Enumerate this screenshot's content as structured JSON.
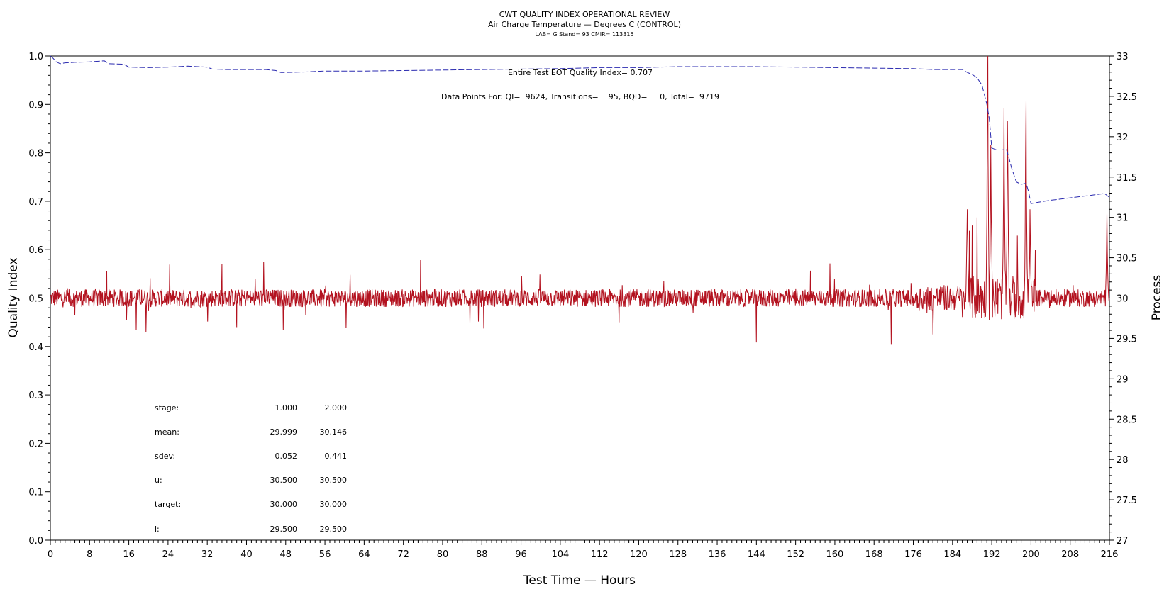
{
  "chart_data": {
    "type": "line",
    "title": "CWT QUALITY INDEX OPERATIONAL REVIEW",
    "subtitle": "Air Charge Temperature — Degrees C (CONTROL)",
    "subtitle2": "LAB= G Stand= 93 CMIR= 113315",
    "xlabel": "Test Time — Hours",
    "ylabel": "Quality Index",
    "y2label": "Process",
    "xlim": [
      0,
      216
    ],
    "ylim": [
      0,
      1.0
    ],
    "y2lim": [
      27,
      33
    ],
    "x_ticks": [
      0,
      8,
      16,
      24,
      32,
      40,
      48,
      56,
      64,
      72,
      80,
      88,
      96,
      104,
      112,
      120,
      128,
      136,
      144,
      152,
      160,
      168,
      176,
      184,
      192,
      200,
      208,
      216
    ],
    "y_ticks": [
      "0.0",
      "0.1",
      "0.2",
      "0.3",
      "0.4",
      "0.5",
      "0.6",
      "0.7",
      "0.8",
      "0.9",
      "1.0"
    ],
    "y2_ticks": [
      "27",
      "27.5",
      "28",
      "28.5",
      "29",
      "29.5",
      "30",
      "30.5",
      "31",
      "31.5",
      "32",
      "32.5",
      "33"
    ],
    "annotations": [
      "Entire Test EOT Quality Index=  0.707",
      "Data Points For: QI=  9624, Transitions=    95, BQD=     0, Total=  9719"
    ],
    "stats_table": {
      "rows": [
        {
          "label": "stage:",
          "values": [
            "1.000",
            "2.000"
          ]
        },
        {
          "label": "mean:",
          "values": [
            "29.999",
            "30.146"
          ]
        },
        {
          "label": "sdev:",
          "values": [
            "0.052",
            "0.441"
          ]
        },
        {
          "label": "u:",
          "values": [
            "30.500",
            "30.500"
          ]
        },
        {
          "label": "target:",
          "values": [
            "30.000",
            "30.000"
          ]
        },
        {
          "label": "l:",
          "values": [
            "29.500",
            "29.500"
          ]
        }
      ]
    },
    "series": [
      {
        "name": "",
        "axis": "left",
        "color": "#2b2bb0",
        "style": "dashed",
        "x": [
          0,
          0.6,
          1.2,
          2,
          3,
          5,
          8,
          11,
          12,
          15,
          16,
          20,
          24,
          28,
          32,
          33,
          36,
          40,
          44,
          46,
          47,
          48,
          52,
          56,
          60,
          64,
          72,
          80,
          88,
          96,
          104,
          112,
          120,
          128,
          136,
          144,
          152,
          160,
          168,
          176,
          180,
          184,
          186,
          187,
          188,
          189,
          190,
          191,
          191.5,
          192,
          193,
          194,
          195,
          195.5,
          196,
          197,
          198,
          199,
          199.5,
          200,
          201,
          204,
          208,
          212,
          215,
          216
        ],
        "y": [
          1.0,
          0.995,
          0.988,
          0.984,
          0.986,
          0.987,
          0.988,
          0.99,
          0.984,
          0.983,
          0.977,
          0.976,
          0.977,
          0.979,
          0.977,
          0.973,
          0.972,
          0.972,
          0.972,
          0.97,
          0.966,
          0.966,
          0.967,
          0.969,
          0.969,
          0.969,
          0.97,
          0.971,
          0.972,
          0.973,
          0.974,
          0.976,
          0.976,
          0.978,
          0.978,
          0.978,
          0.977,
          0.976,
          0.975,
          0.974,
          0.972,
          0.972,
          0.972,
          0.966,
          0.962,
          0.955,
          0.94,
          0.9,
          0.87,
          0.81,
          0.806,
          0.806,
          0.807,
          0.79,
          0.77,
          0.74,
          0.735,
          0.737,
          0.72,
          0.695,
          0.697,
          0.702,
          0.707,
          0.712,
          0.716,
          0.708
        ]
      },
      {
        "name": "",
        "axis": "right",
        "color": "#b3121f",
        "style": "solid",
        "x_range": [
          0,
          216
        ],
        "baseline": 30.0,
        "peaks": [
          {
            "x": 11.5,
            "y": 30.33
          },
          {
            "x": 17.5,
            "y": 29.6
          },
          {
            "x": 19.5,
            "y": 29.58
          },
          {
            "x": 35,
            "y": 30.42
          },
          {
            "x": 38,
            "y": 29.64
          },
          {
            "x": 43.5,
            "y": 30.45
          },
          {
            "x": 47.5,
            "y": 29.6
          },
          {
            "x": 75.5,
            "y": 30.47
          },
          {
            "x": 116,
            "y": 29.7
          },
          {
            "x": 144,
            "y": 29.45
          },
          {
            "x": 159,
            "y": 30.43
          },
          {
            "x": 171.5,
            "y": 29.43
          },
          {
            "x": 180,
            "y": 29.55
          },
          {
            "x": 187,
            "y": 31.1
          },
          {
            "x": 188,
            "y": 30.9
          },
          {
            "x": 189,
            "y": 31.0
          },
          {
            "x": 191.2,
            "y": 33.0
          },
          {
            "x": 191.8,
            "y": 31.9
          },
          {
            "x": 194.5,
            "y": 32.35
          },
          {
            "x": 195.2,
            "y": 32.2
          },
          {
            "x": 199,
            "y": 32.45
          },
          {
            "x": 199.8,
            "y": 31.1
          },
          {
            "x": 215.5,
            "y": 31.05
          }
        ]
      }
    ],
    "grid": false,
    "legend": false
  }
}
